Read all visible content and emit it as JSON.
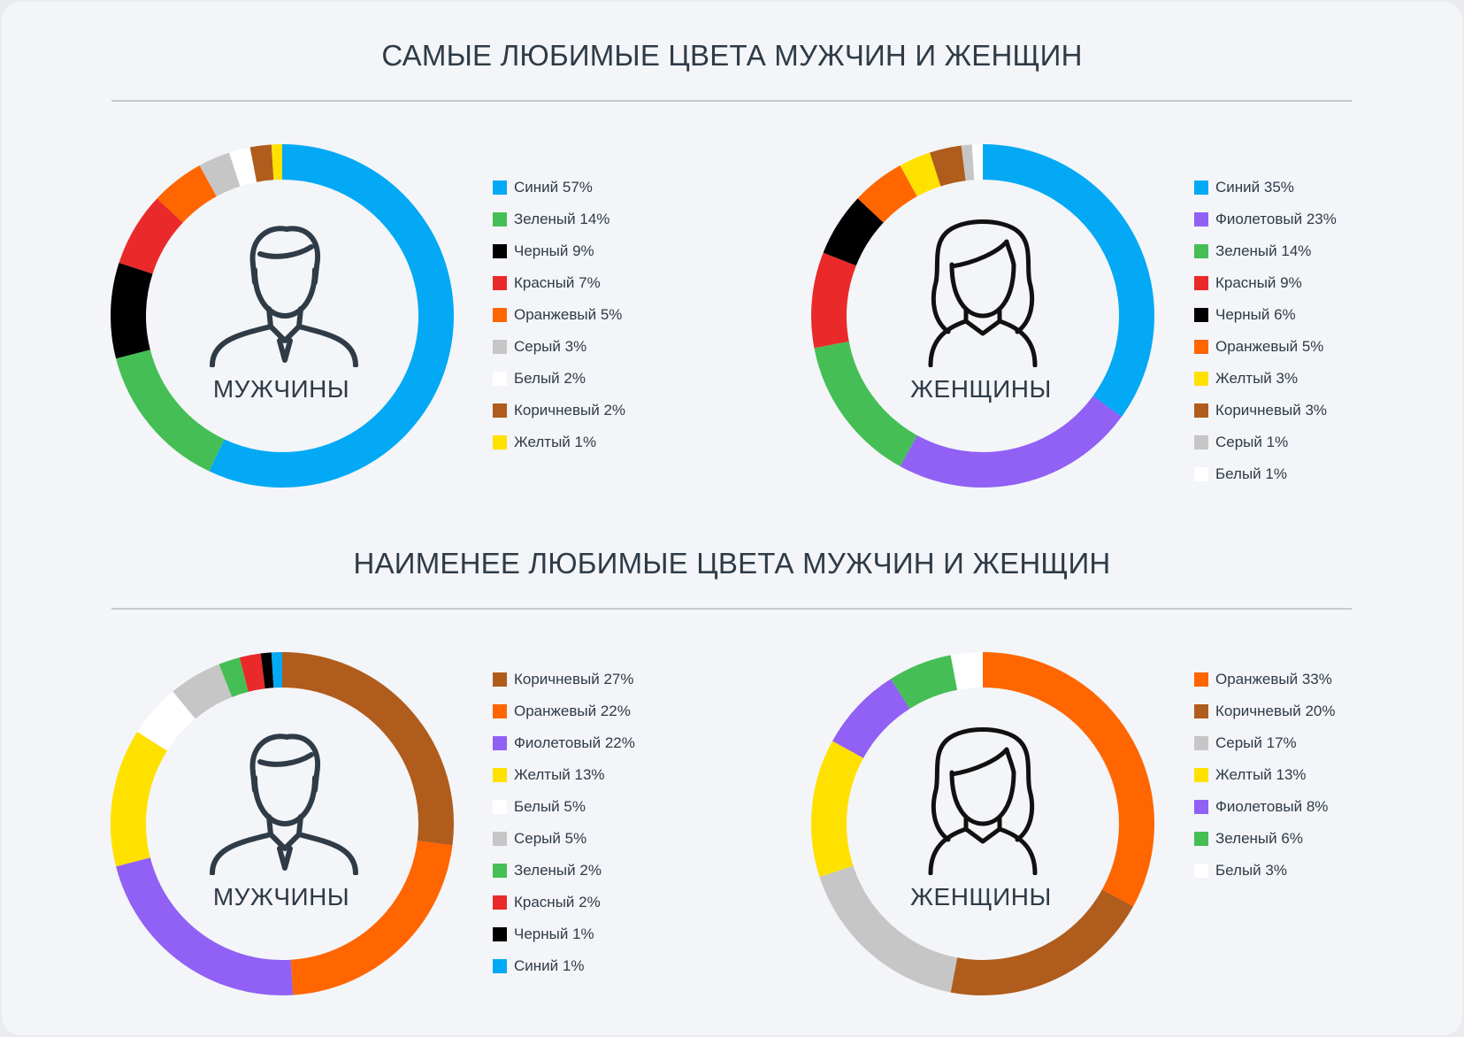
{
  "sections": {
    "favorite_title": "САМЫЕ ЛЮБИМЫЕ ЦВЕТА МУЖЧИН И ЖЕНЩИН",
    "least_title": "НАИМЕНЕЕ ЛЮБИМЫЕ ЦВЕТА МУЖЧИН И ЖЕНЩИН"
  },
  "chart_data": [
    {
      "type": "pie",
      "title": "САМЫЕ ЛЮБИМЫЕ ЦВЕТА МУЖЧИН И ЖЕНЩИН",
      "center_label": "МУЖЧИНЫ",
      "icon": "man-icon",
      "slices": [
        {
          "label": "Синий",
          "value": 57,
          "color": "#03a9f4"
        },
        {
          "label": "Зеленый",
          "value": 14,
          "color": "#45bf55"
        },
        {
          "label": "Черный",
          "value": 9,
          "color": "#000000"
        },
        {
          "label": "Красный",
          "value": 7,
          "color": "#ea2a2a"
        },
        {
          "label": "Оранжевый",
          "value": 5,
          "color": "#ff6600"
        },
        {
          "label": "Серый",
          "value": 3,
          "color": "#c6c6c6"
        },
        {
          "label": "Белый",
          "value": 2,
          "color": "#ffffff"
        },
        {
          "label": "Коричневый",
          "value": 2,
          "color": "#b05c1c"
        },
        {
          "label": "Желтый",
          "value": 1,
          "color": "#ffe100"
        }
      ]
    },
    {
      "type": "pie",
      "title": "САМЫЕ ЛЮБИМЫЕ ЦВЕТА МУЖЧИН И ЖЕНЩИН",
      "center_label": "ЖЕНЩИНЫ",
      "icon": "woman-icon",
      "slices": [
        {
          "label": "Синий",
          "value": 35,
          "color": "#03a9f4"
        },
        {
          "label": "Фиолетовый",
          "value": 23,
          "color": "#9160f5"
        },
        {
          "label": "Зеленый",
          "value": 14,
          "color": "#45bf55"
        },
        {
          "label": "Красный",
          "value": 9,
          "color": "#ea2a2a"
        },
        {
          "label": "Черный",
          "value": 6,
          "color": "#000000"
        },
        {
          "label": "Оранжевый",
          "value": 5,
          "color": "#ff6600"
        },
        {
          "label": "Желтый",
          "value": 3,
          "color": "#ffe100"
        },
        {
          "label": "Коричневый",
          "value": 3,
          "color": "#b05c1c"
        },
        {
          "label": "Серый",
          "value": 1,
          "color": "#c6c6c6"
        },
        {
          "label": "Белый",
          "value": 1,
          "color": "#ffffff"
        }
      ]
    },
    {
      "type": "pie",
      "title": "НАИМЕНЕЕ ЛЮБИМЫЕ ЦВЕТА МУЖЧИН И ЖЕНЩИН",
      "center_label": "МУЖЧИНЫ",
      "icon": "man-icon",
      "slices": [
        {
          "label": "Коричневый",
          "value": 27,
          "color": "#b05c1c"
        },
        {
          "label": "Оранжевый",
          "value": 22,
          "color": "#ff6600"
        },
        {
          "label": "Фиолетовый",
          "value": 22,
          "color": "#9160f5"
        },
        {
          "label": "Желтый",
          "value": 13,
          "color": "#ffe100"
        },
        {
          "label": "Белый",
          "value": 5,
          "color": "#ffffff"
        },
        {
          "label": "Серый",
          "value": 5,
          "color": "#c6c6c6"
        },
        {
          "label": "Зеленый",
          "value": 2,
          "color": "#45bf55"
        },
        {
          "label": "Красный",
          "value": 2,
          "color": "#ea2a2a"
        },
        {
          "label": "Черный",
          "value": 1,
          "color": "#000000"
        },
        {
          "label": "Синий",
          "value": 1,
          "color": "#03a9f4"
        }
      ]
    },
    {
      "type": "pie",
      "title": "НАИМЕНЕЕ ЛЮБИМЫЕ ЦВЕТА МУЖЧИН И ЖЕНЩИН",
      "center_label": "ЖЕНЩИНЫ",
      "icon": "woman-icon",
      "slices": [
        {
          "label": "Оранжевый",
          "value": 33,
          "color": "#ff6600"
        },
        {
          "label": "Коричневый",
          "value": 20,
          "color": "#b05c1c"
        },
        {
          "label": "Серый",
          "value": 17,
          "color": "#c6c6c6"
        },
        {
          "label": "Желтый",
          "value": 13,
          "color": "#ffe100"
        },
        {
          "label": "Фиолетовый",
          "value": 8,
          "color": "#9160f5"
        },
        {
          "label": "Зеленый",
          "value": 6,
          "color": "#45bf55"
        },
        {
          "label": "Белый",
          "value": 3,
          "color": "#ffffff"
        }
      ]
    }
  ]
}
